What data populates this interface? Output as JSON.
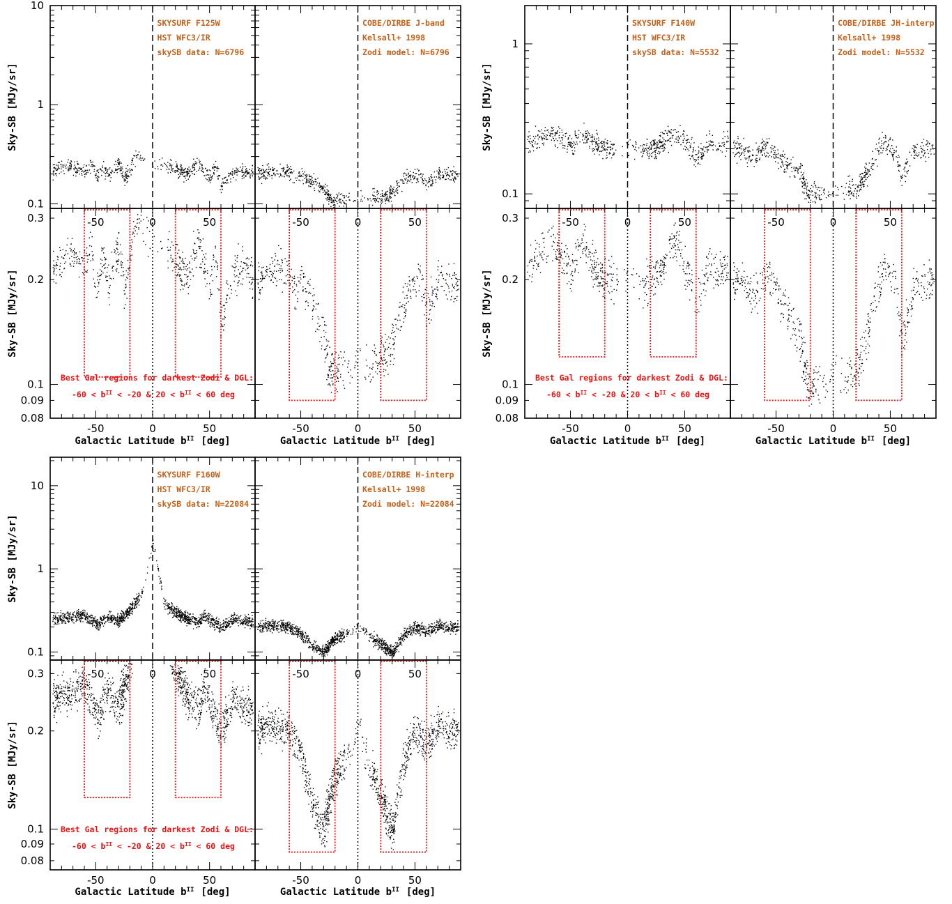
{
  "chart_data": [
    {
      "type": "scatter",
      "title": "",
      "xlabel": "Galactic Latitude b",
      "xlabel_superscript": "II",
      "xlabel_unit": "[deg]",
      "ylabel": "Sky-SB [MJy/sr]",
      "xlim": [
        -90,
        90
      ],
      "x_ticks": [
        "-50",
        "0",
        "50"
      ],
      "y_scale": "log",
      "top_panels": {
        "ylim": [
          0.09,
          10
        ],
        "y_ticks": [
          "0.1",
          "1",
          "10"
        ],
        "left_annotation": [
          "SKYSURF F125W",
          "HST WFC3/IR",
          "skySB data: N=6796"
        ],
        "right_annotation": [
          "COBE/DIRBE J-band",
          "Kelsall+ 1998",
          "Zodi model: N=6796"
        ]
      },
      "bottom_panels": {
        "ylim": [
          0.08,
          0.32
        ],
        "y_ticks": [
          "0.08",
          "0.09",
          "0.1",
          "0.2",
          "0.3"
        ],
        "best_regions": [
          [
            -60,
            -20
          ],
          [
            20,
            60
          ]
        ],
        "note": [
          "Best Gal regions for darkest Zodi & DGL:",
          "-60 < b",
          "II",
          " < -20 & 20 < b",
          "II",
          " < 60 deg"
        ]
      },
      "series": [
        {
          "name": "skySB data: N=6796",
          "points": [
            [
              -85,
              0.22
            ],
            [
              -72,
              0.24
            ],
            [
              -60,
              0.21
            ],
            [
              -55,
              0.26
            ],
            [
              -50,
              0.19
            ],
            [
              -45,
              0.23
            ],
            [
              -38,
              0.2
            ],
            [
              -30,
              0.25
            ],
            [
              -25,
              0.18
            ],
            [
              -15,
              0.3
            ],
            [
              20,
              0.23
            ],
            [
              30,
              0.2
            ],
            [
              40,
              0.26
            ],
            [
              45,
              0.22
            ],
            [
              50,
              0.19
            ],
            [
              55,
              0.24
            ],
            [
              60,
              0.15
            ],
            [
              70,
              0.21
            ],
            [
              80,
              0.22
            ],
            [
              88,
              0.2
            ]
          ]
        },
        {
          "name": "Zodi model: N=6796",
          "points": [
            [
              -85,
              0.2
            ],
            [
              -70,
              0.22
            ],
            [
              -60,
              0.21
            ],
            [
              -55,
              0.18
            ],
            [
              -50,
              0.2
            ],
            [
              -40,
              0.17
            ],
            [
              -30,
              0.14
            ],
            [
              -25,
              0.11
            ],
            [
              25,
              0.12
            ],
            [
              35,
              0.15
            ],
            [
              45,
              0.19
            ],
            [
              55,
              0.2
            ],
            [
              60,
              0.16
            ],
            [
              70,
              0.2
            ],
            [
              80,
              0.2
            ],
            [
              88,
              0.19
            ]
          ]
        }
      ]
    },
    {
      "type": "scatter",
      "title": "",
      "xlabel": "Galactic Latitude b",
      "xlabel_superscript": "II",
      "xlabel_unit": "[deg]",
      "ylabel": "Sky-SB [MJy/sr]",
      "xlim": [
        -90,
        90
      ],
      "x_ticks": [
        "-50",
        "0",
        "50"
      ],
      "y_scale": "log",
      "top_panels": {
        "ylim": [
          0.08,
          1.8
        ],
        "y_ticks": [
          "0.1",
          "1"
        ],
        "left_annotation": [
          "SKYSURF F140W",
          "HST WFC3/IR",
          "skySB data: N=5532"
        ],
        "right_annotation": [
          "COBE/DIRBE JH-interp",
          "Kelsall+ 1998",
          "Zodi model: N=5532"
        ]
      },
      "bottom_panels": {
        "ylim": [
          0.08,
          0.32
        ],
        "y_ticks": [
          "0.08",
          "0.09",
          "0.1",
          "0.2",
          "0.3"
        ],
        "best_regions": [
          [
            -60,
            -20
          ],
          [
            20,
            60
          ]
        ],
        "note": [
          "Best Gal regions for darkest Zodi & DGL:",
          "-60 < b",
          "II",
          " < -20 & 20 < b",
          "II",
          " < 60 deg"
        ]
      },
      "series": [
        {
          "name": "skySB data: N=5532",
          "points": [
            [
              -85,
              0.22
            ],
            [
              -70,
              0.25
            ],
            [
              -58,
              0.24
            ],
            [
              -50,
              0.21
            ],
            [
              -40,
              0.26
            ],
            [
              -30,
              0.22
            ],
            [
              -22,
              0.2
            ],
            [
              20,
              0.2
            ],
            [
              30,
              0.22
            ],
            [
              40,
              0.26
            ],
            [
              45,
              0.24
            ],
            [
              55,
              0.2
            ],
            [
              60,
              0.17
            ],
            [
              70,
              0.22
            ],
            [
              80,
              0.21
            ],
            [
              88,
              0.22
            ]
          ]
        },
        {
          "name": "Zodi model: N=5532",
          "points": [
            [
              -85,
              0.2
            ],
            [
              -70,
              0.18
            ],
            [
              -58,
              0.21
            ],
            [
              -45,
              0.17
            ],
            [
              -30,
              0.14
            ],
            [
              -22,
              0.1
            ],
            [
              22,
              0.11
            ],
            [
              35,
              0.17
            ],
            [
              45,
              0.22
            ],
            [
              55,
              0.19
            ],
            [
              60,
              0.13
            ],
            [
              70,
              0.19
            ],
            [
              80,
              0.2
            ],
            [
              88,
              0.2
            ]
          ]
        }
      ]
    },
    {
      "type": "scatter",
      "title": "",
      "xlabel": "Galactic Latitude b",
      "xlabel_superscript": "II",
      "xlabel_unit": "[deg]",
      "ylabel": "Sky-SB [MJy/sr]",
      "xlim": [
        -90,
        90
      ],
      "x_ticks": [
        "-50",
        "0",
        "50"
      ],
      "y_scale": "log",
      "top_panels": {
        "ylim": [
          0.08,
          22
        ],
        "y_ticks": [
          "0.1",
          "1",
          "10"
        ],
        "left_annotation": [
          "SKYSURF F160W",
          "HST WFC3/IR",
          "skySB data: N=22084"
        ],
        "right_annotation": [
          "COBE/DIRBE H-interp",
          "Kelsall+ 1998",
          "Zodi model: N=22084"
        ]
      },
      "bottom_panels": {
        "ylim": [
          0.075,
          0.33
        ],
        "y_ticks": [
          "0.08",
          "0.09",
          "0.1",
          "0.2",
          "0.3"
        ],
        "best_regions": [
          [
            -60,
            -20
          ],
          [
            20,
            60
          ]
        ],
        "note": [
          "Best Gal regions for darkest Zodi & DGL:",
          "-60 < b",
          "II",
          " < -20 & 20 < b",
          "II",
          " < 60 deg"
        ]
      },
      "series": [
        {
          "name": "skySB data: N=22084",
          "points": [
            [
              -88,
              0.25
            ],
            [
              -75,
              0.26
            ],
            [
              -60,
              0.28
            ],
            [
              -55,
              0.25
            ],
            [
              -48,
              0.22
            ],
            [
              -40,
              0.27
            ],
            [
              -30,
              0.24
            ],
            [
              -22,
              0.3
            ],
            [
              -10,
              0.5
            ],
            [
              0,
              2.0
            ],
            [
              10,
              0.4
            ],
            [
              20,
              0.3
            ],
            [
              30,
              0.26
            ],
            [
              40,
              0.23
            ],
            [
              45,
              0.27
            ],
            [
              55,
              0.22
            ],
            [
              60,
              0.2
            ],
            [
              70,
              0.25
            ],
            [
              80,
              0.24
            ],
            [
              88,
              0.23
            ]
          ]
        },
        {
          "name": "Zodi model: N=22084",
          "points": [
            [
              -88,
              0.2
            ],
            [
              -75,
              0.21
            ],
            [
              -60,
              0.2
            ],
            [
              -50,
              0.17
            ],
            [
              -40,
              0.12
            ],
            [
              -30,
              0.1
            ],
            [
              -22,
              0.14
            ],
            [
              0,
              0.2
            ],
            [
              22,
              0.12
            ],
            [
              30,
              0.1
            ],
            [
              40,
              0.16
            ],
            [
              50,
              0.2
            ],
            [
              60,
              0.18
            ],
            [
              70,
              0.21
            ],
            [
              80,
              0.2
            ],
            [
              88,
              0.2
            ]
          ]
        }
      ]
    }
  ]
}
